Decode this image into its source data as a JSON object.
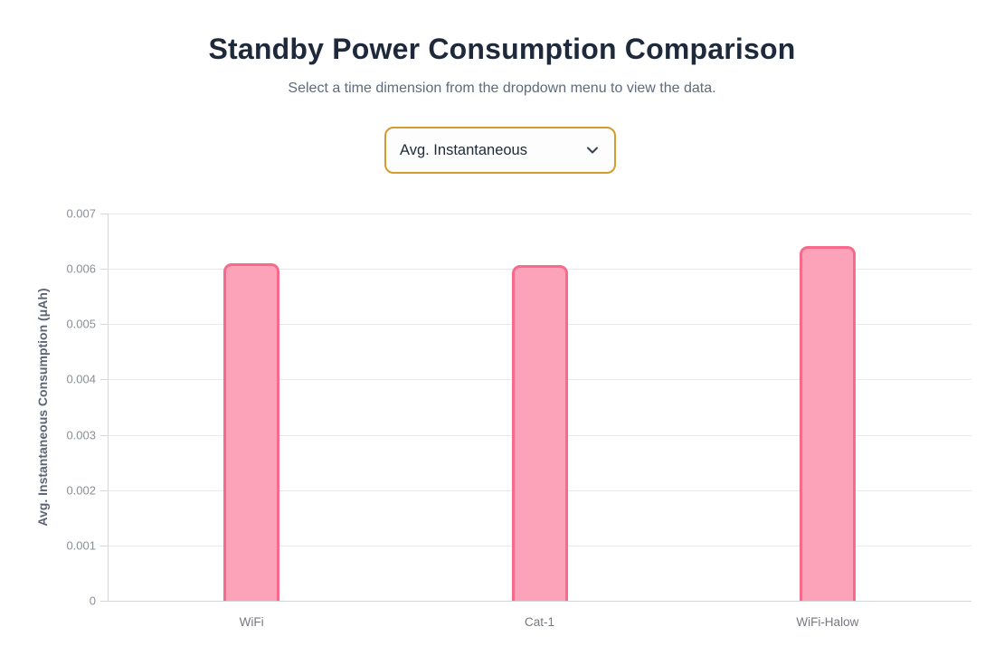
{
  "page": {
    "title": "Standby Power Consumption Comparison",
    "subtitle": "Select a time dimension from the dropdown menu to view the data."
  },
  "dropdown": {
    "selected": "Avg. Instantaneous",
    "border_color": "#d59b2d"
  },
  "chart_data": {
    "type": "bar",
    "categories": [
      "WiFi",
      "Cat-1",
      "WiFi-Halow"
    ],
    "values": [
      0.0061,
      0.00606,
      0.00641
    ],
    "title": "",
    "xlabel": "",
    "ylabel": "Avg. Instantaneous Consumption (μAh)",
    "ylim": [
      0,
      0.007
    ],
    "yticks": [
      0,
      0.001,
      0.002,
      0.003,
      0.004,
      0.005,
      0.006,
      0.007
    ],
    "ytick_labels": [
      "0",
      "0.001",
      "0.002",
      "0.003",
      "0.004",
      "0.005",
      "0.006",
      "0.007"
    ],
    "grid": true,
    "legend": false,
    "bar_fill": "#fda3b9",
    "bar_border": "#f76a8b",
    "gridline_color": "#e9eaec",
    "axis_color": "#d3d6da"
  }
}
